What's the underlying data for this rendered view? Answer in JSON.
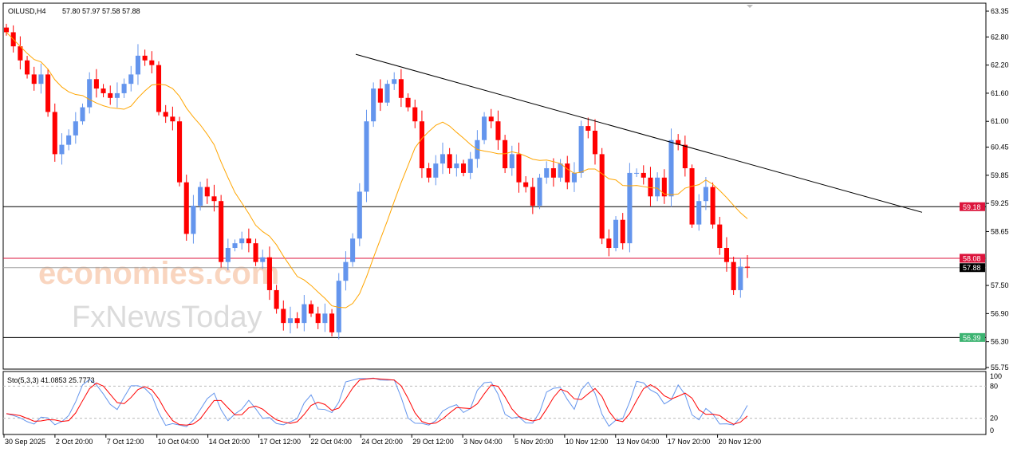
{
  "header": {
    "symbol": "OILUSD,H4",
    "ohlc": "57.80 57.97 57.58 57.88"
  },
  "watermark": {
    "line1": "economies.com",
    "line2": "FxNewsToday"
  },
  "colors": {
    "bull": "#6495ED",
    "bear": "#FF0000",
    "ma": "#FFA500",
    "stoch_main": "#6495ED",
    "stoch_signal": "#FF0000",
    "label_red": "#DC143C",
    "label_green": "#3CB371",
    "label_black": "#000000"
  },
  "chart_data": [
    {
      "type": "candlestick",
      "symbol": "OILUSD",
      "timeframe": "H4",
      "ylim": [
        55.75,
        63.35
      ],
      "y_ticks": [
        "63.35",
        "62.80",
        "62.20",
        "61.60",
        "61.00",
        "60.45",
        "59.85",
        "59.25",
        "58.65",
        "57.50",
        "56.90",
        "56.30",
        "55.75"
      ],
      "x_ticks": [
        "30 Sep 2025",
        "2 Oct 20:00",
        "7 Oct 12:00",
        "10 Oct 04:00",
        "14 Oct 20:00",
        "17 Oct 12:00",
        "22 Oct 04:00",
        "24 Oct 20:00",
        "29 Oct 12:00",
        "3 Nov 04:00",
        "5 Nov 20:00",
        "10 Nov 12:00",
        "13 Nov 04:00",
        "17 Nov 20:00",
        "20 Nov 12:00"
      ],
      "closes": [
        62.9,
        62.6,
        62.3,
        62.0,
        61.8,
        62.0,
        61.2,
        60.3,
        60.5,
        60.7,
        61.0,
        61.3,
        61.9,
        61.7,
        61.6,
        61.5,
        61.6,
        61.8,
        62.0,
        62.4,
        62.3,
        62.2,
        61.2,
        61.1,
        61.0,
        59.7,
        58.6,
        59.2,
        59.6,
        59.4,
        59.3,
        58.0,
        58.3,
        58.4,
        58.5,
        58.4,
        58.0,
        58.1,
        57.4,
        57.0,
        56.7,
        56.8,
        56.7,
        57.1,
        56.9,
        56.7,
        56.9,
        56.5,
        57.6,
        58.0,
        58.5,
        59.5,
        61.0,
        61.7,
        61.4,
        61.8,
        61.9,
        61.5,
        61.3,
        61.0,
        60.0,
        59.8,
        60.1,
        60.3,
        60.0,
        60.1,
        59.9,
        60.2,
        60.6,
        61.1,
        61.0,
        60.6,
        60.0,
        60.3,
        59.7,
        59.6,
        59.2,
        59.8,
        60.0,
        59.8,
        60.1,
        59.7,
        59.9,
        60.9,
        60.8,
        60.3,
        58.5,
        58.3,
        58.9,
        58.4,
        59.9,
        59.9,
        59.8,
        59.4,
        59.8,
        59.4,
        60.6,
        60.5,
        60.0,
        58.8,
        59.3,
        59.6,
        58.8,
        58.3,
        58.0,
        57.4,
        57.9,
        57.88
      ],
      "moving_average": {
        "color": "#FFA500"
      },
      "trendline": {
        "start_price": 62.43,
        "end_price": 59.06
      },
      "levels": [
        {
          "price": 59.18,
          "label": "59.18",
          "line": "#000000",
          "label_bg": "#DC143C"
        },
        {
          "price": 58.08,
          "label": "58.08",
          "line": "#DC143C",
          "label_bg": "#DC143C"
        },
        {
          "price": 57.88,
          "label": "57.88",
          "line": "#A0A0A0",
          "label_bg": "#000000"
        },
        {
          "price": 56.39,
          "label": "56.39",
          "line": "#000000",
          "label_bg": "#3CB371"
        }
      ]
    },
    {
      "type": "line",
      "indicator": "Sto(5,3,3)",
      "title": "Sto(5,3,3) 41.0853 25.7773",
      "ylim": [
        0,
        100
      ],
      "y_ticks": [
        "100",
        "80",
        "20",
        "0"
      ],
      "levels": [
        80,
        20
      ]
    }
  ]
}
